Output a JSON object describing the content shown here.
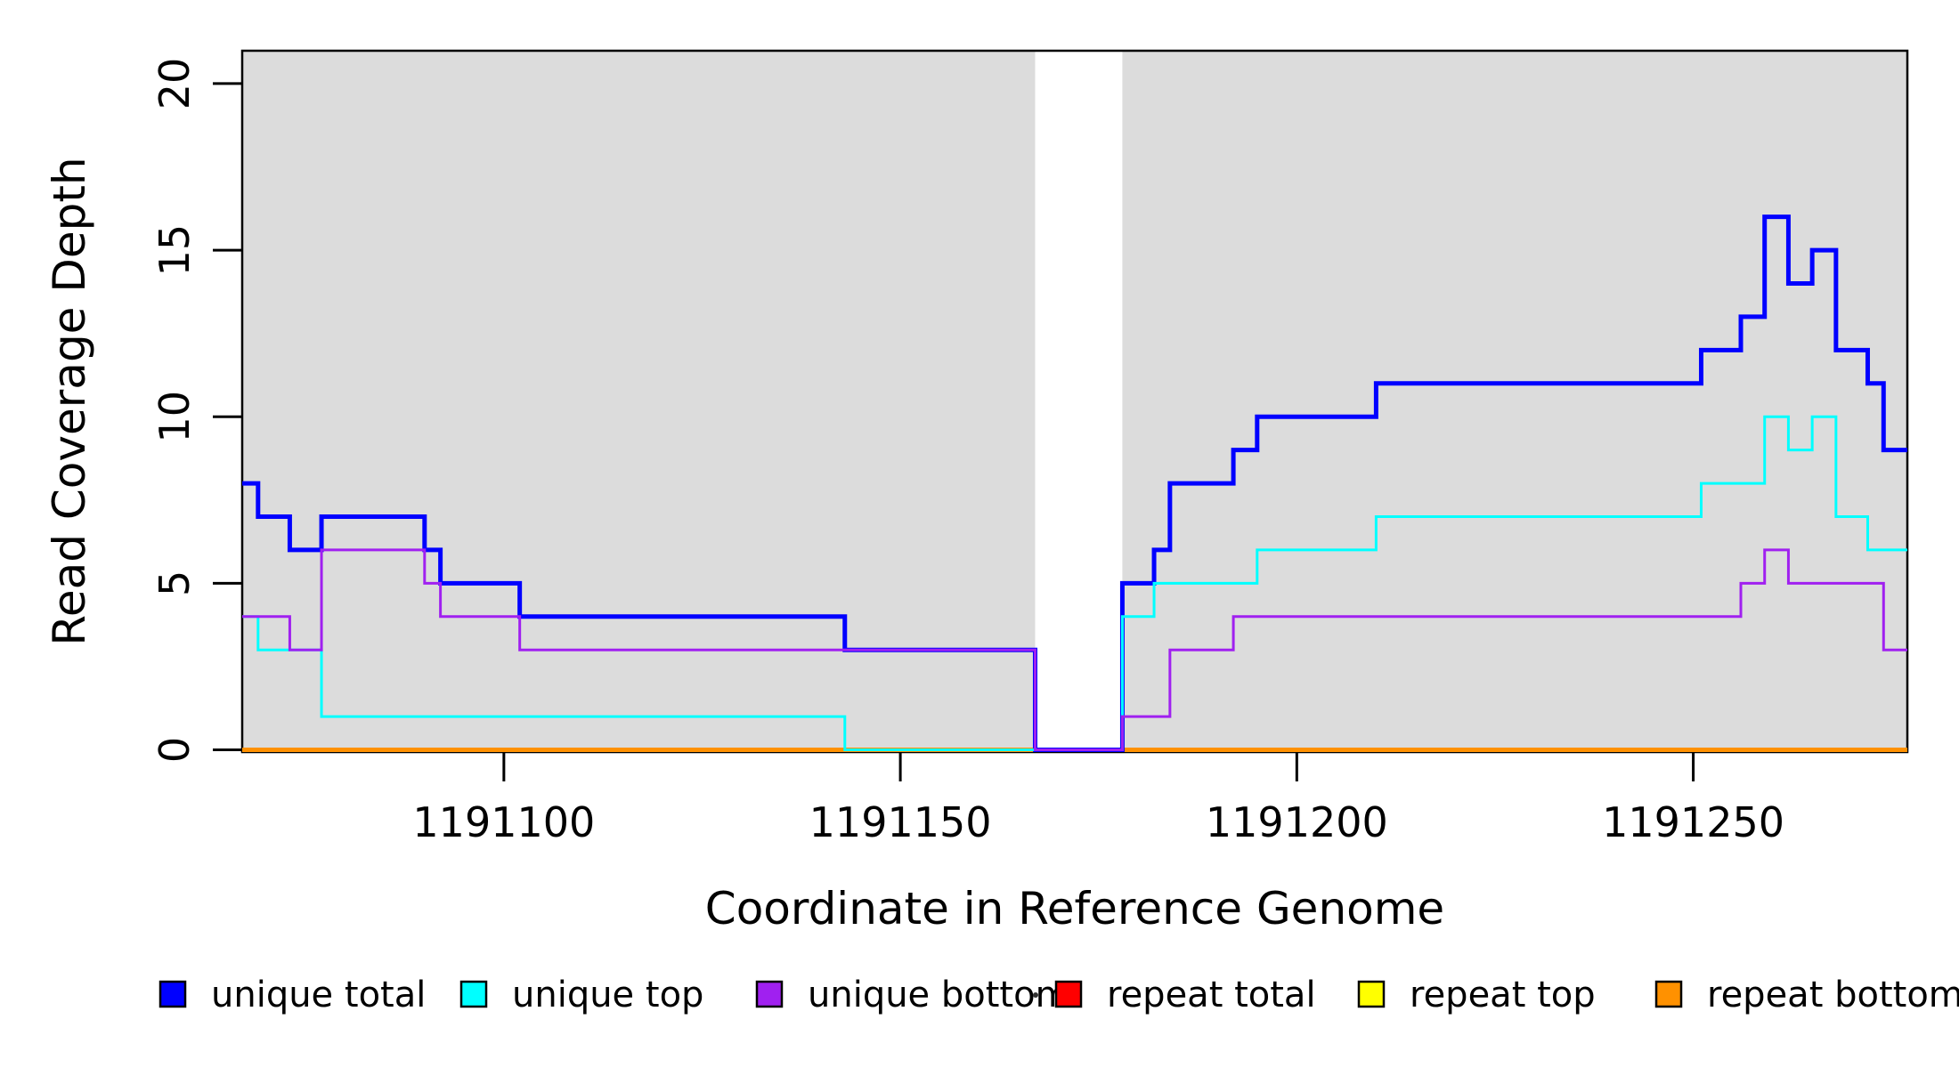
{
  "figure": {
    "xlabel": "Coordinate in Reference Genome",
    "ylabel": "Read Coverage Depth"
  },
  "chart_data": {
    "type": "line",
    "subtype": "step-coverage-plot",
    "title": "",
    "xlabel": "Coordinate in Reference Genome",
    "ylabel": "Read Coverage Depth",
    "xlim": [
      1191067,
      1191277
    ],
    "ylim": [
      0,
      21
    ],
    "x_ticks": [
      1191100,
      1191150,
      1191200,
      1191250
    ],
    "y_ticks": [
      0,
      5,
      10,
      15,
      20
    ],
    "grid": false,
    "legend_position": "bottom",
    "plot_background": "#FFFFFF",
    "shaded_region_color": "#DCDCDC",
    "background_regions": [
      {
        "name": "shaded-region-left",
        "x0": 1191067,
        "x1": 1191167
      },
      {
        "name": "shaded-region-right",
        "x0": 1191178,
        "x1": 1191277
      }
    ],
    "series": [
      {
        "name": "repeat total",
        "color": "#FF0000",
        "width": 5,
        "segments": [
          [
            1191067,
            1191277,
            0
          ]
        ]
      },
      {
        "name": "repeat top",
        "color": "#FFFF00",
        "width": 5,
        "segments": [
          [
            1191067,
            1191277,
            0
          ]
        ]
      },
      {
        "name": "repeat bottom",
        "color": "#FF9100",
        "width": 5,
        "segments": [
          [
            1191067,
            1191277,
            0
          ]
        ]
      },
      {
        "name": "unique total",
        "color": "#0000FF",
        "width": 5,
        "segments": [
          [
            1191067,
            1191069,
            8
          ],
          [
            1191069,
            1191073,
            7
          ],
          [
            1191073,
            1191077,
            6
          ],
          [
            1191077,
            1191090,
            7
          ],
          [
            1191090,
            1191092,
            6
          ],
          [
            1191092,
            1191102,
            5
          ],
          [
            1191102,
            1191143,
            4
          ],
          [
            1191143,
            1191167,
            3
          ],
          [
            1191167,
            1191178,
            0
          ],
          [
            1191178,
            1191182,
            5
          ],
          [
            1191182,
            1191184,
            6
          ],
          [
            1191184,
            1191192,
            8
          ],
          [
            1191192,
            1191195,
            9
          ],
          [
            1191195,
            1191210,
            10
          ],
          [
            1191210,
            1191251,
            11
          ],
          [
            1191251,
            1191256,
            12
          ],
          [
            1191256,
            1191259,
            13
          ],
          [
            1191259,
            1191262,
            16
          ],
          [
            1191262,
            1191265,
            14
          ],
          [
            1191265,
            1191268,
            15
          ],
          [
            1191268,
            1191272,
            12
          ],
          [
            1191272,
            1191274,
            11
          ],
          [
            1191274,
            1191277,
            9
          ]
        ]
      },
      {
        "name": "unique top",
        "color": "#00FFFF",
        "width": 3,
        "segments": [
          [
            1191067,
            1191069,
            4
          ],
          [
            1191069,
            1191077,
            3
          ],
          [
            1191077,
            1191143,
            1
          ],
          [
            1191143,
            1191178,
            0
          ],
          [
            1191178,
            1191182,
            4
          ],
          [
            1191182,
            1191195,
            5
          ],
          [
            1191195,
            1191210,
            6
          ],
          [
            1191210,
            1191251,
            7
          ],
          [
            1191251,
            1191259,
            8
          ],
          [
            1191259,
            1191262,
            10
          ],
          [
            1191262,
            1191265,
            9
          ],
          [
            1191265,
            1191268,
            10
          ],
          [
            1191268,
            1191272,
            7
          ],
          [
            1191272,
            1191277,
            6
          ]
        ]
      },
      {
        "name": "unique bottom",
        "color": "#A020F0",
        "width": 3,
        "segments": [
          [
            1191067,
            1191073,
            4
          ],
          [
            1191073,
            1191077,
            3
          ],
          [
            1191077,
            1191090,
            6
          ],
          [
            1191090,
            1191092,
            5
          ],
          [
            1191092,
            1191102,
            4
          ],
          [
            1191102,
            1191167,
            3
          ],
          [
            1191167,
            1191178,
            0
          ],
          [
            1191178,
            1191184,
            1
          ],
          [
            1191184,
            1191192,
            3
          ],
          [
            1191192,
            1191256,
            4
          ],
          [
            1191256,
            1191259,
            5
          ],
          [
            1191259,
            1191262,
            6
          ],
          [
            1191262,
            1191274,
            5
          ],
          [
            1191274,
            1191277,
            3
          ]
        ]
      }
    ],
    "legend": [
      {
        "label": "unique total",
        "color": "#0000FF"
      },
      {
        "label": "unique top",
        "color": "#00FFFF"
      },
      {
        "label": "unique bottom",
        "color": "#A020F0"
      },
      {
        "label": "repeat total",
        "color": "#FF0000"
      },
      {
        "label": "repeat top",
        "color": "#FFFF00"
      },
      {
        "label": "repeat bottom",
        "color": "#FF9100"
      }
    ]
  }
}
